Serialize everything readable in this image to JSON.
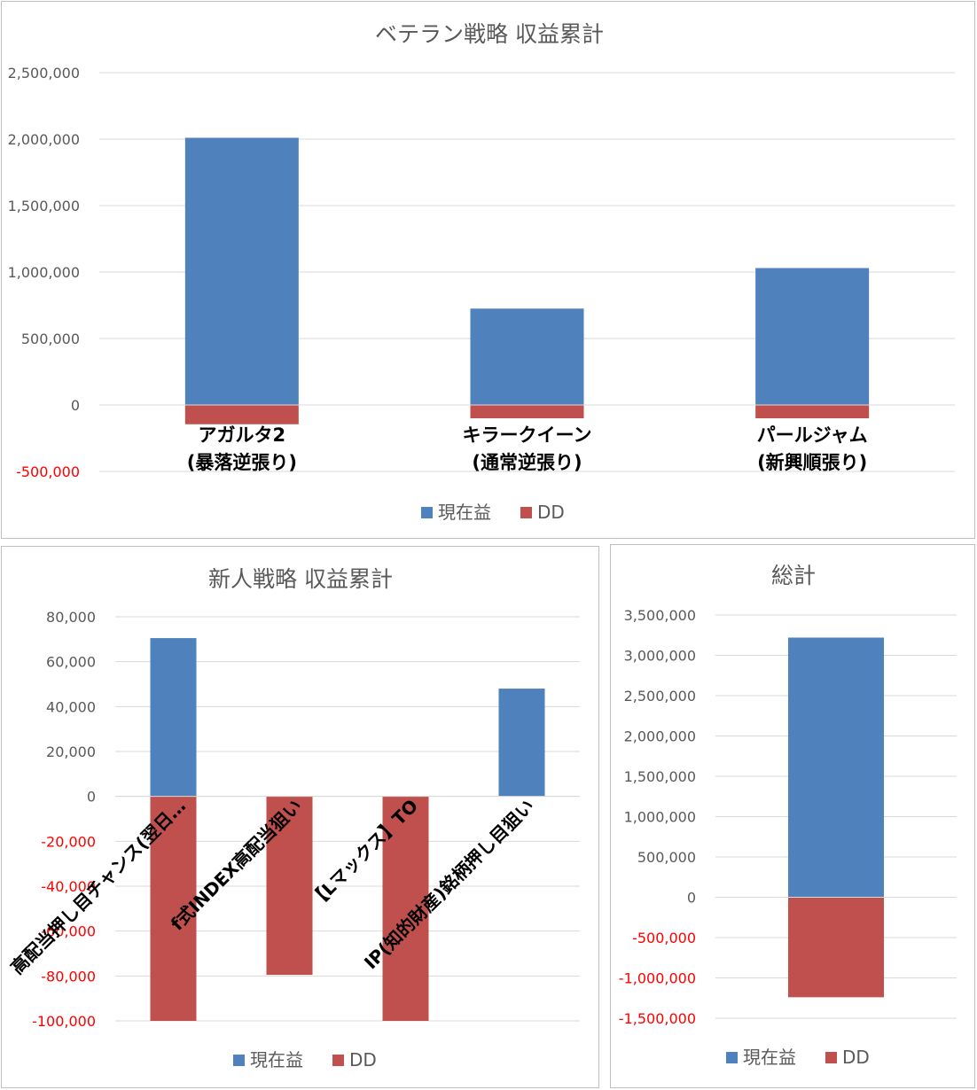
{
  "colors": {
    "profit": "#4f81bd",
    "dd": "#c0504d",
    "grid": "#d9d9d9",
    "negative_tick": "#ff0000"
  },
  "legend": {
    "profit": "現在益",
    "dd": "DD"
  },
  "chart_data": [
    {
      "type": "bar",
      "title": "ベテラン戦略 収益累計",
      "categories": [
        [
          "アガルタ2",
          "(暴落逆張り)"
        ],
        [
          "キラークイーン",
          "(通常逆張り)"
        ],
        [
          "パールジャム",
          "(新興順張り)"
        ]
      ],
      "series": [
        {
          "name": "現在益",
          "values": [
            2010000,
            725000,
            1030000
          ]
        },
        {
          "name": "DD",
          "values": [
            -145000,
            -100000,
            -100000
          ]
        }
      ],
      "ylim": [
        -500000,
        2500000
      ],
      "yticks": [
        "2,500,000",
        "2,000,000",
        "1,500,000",
        "1,000,000",
        "500,000",
        "0",
        "-500,000"
      ],
      "grid": true,
      "legend_position": "bottom"
    },
    {
      "type": "bar",
      "title": "新人戦略 収益累計",
      "categories": [
        "高配当押し目チャンス(翌日…",
        "f式INDEX高配当狙い",
        "【Lマックス】TO",
        "IP(知的財産)銘柄押し目狙い"
      ],
      "series": [
        {
          "name": "現在益",
          "values": [
            70500,
            0,
            0,
            48000
          ]
        },
        {
          "name": "DD",
          "values": [
            -100000,
            -79500,
            -100000,
            0
          ]
        }
      ],
      "ylim": [
        -100000,
        80000
      ],
      "yticks": [
        "80,000",
        "60,000",
        "40,000",
        "20,000",
        "0",
        "-20,000",
        "-40,000",
        "-60,000",
        "-80,000",
        "-100,000"
      ],
      "grid": true,
      "legend_position": "bottom"
    },
    {
      "type": "bar",
      "title": "総計",
      "categories": [
        ""
      ],
      "series": [
        {
          "name": "現在益",
          "values": [
            3220000
          ]
        },
        {
          "name": "DD",
          "values": [
            -1240000
          ]
        }
      ],
      "ylim": [
        -1500000,
        3500000
      ],
      "yticks": [
        "3,500,000",
        "3,000,000",
        "2,500,000",
        "2,000,000",
        "1,500,000",
        "1,000,000",
        "500,000",
        "0",
        "-500,000",
        "-1,000,000",
        "-1,500,000"
      ],
      "grid": true,
      "legend_position": "bottom"
    }
  ]
}
